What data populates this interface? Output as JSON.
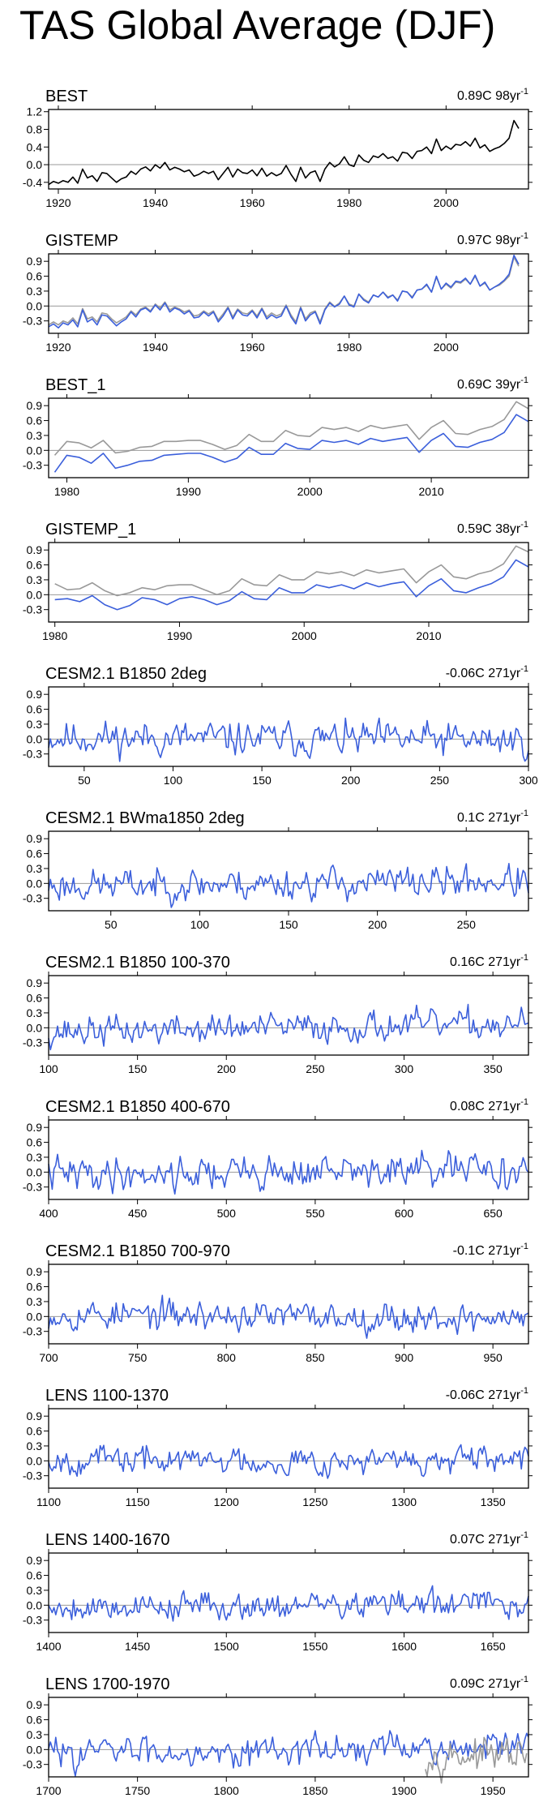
{
  "figure_title": "TAS Global Average (DJF)",
  "chart_data": [
    {
      "type": "line",
      "title": "BEST",
      "trend_label": "0.89C 98yr",
      "trend_unit_sup": "-1",
      "xlim": [
        1918,
        2017
      ],
      "ylim": [
        -0.55,
        1.25
      ],
      "x_ticks": [
        1920,
        1940,
        1960,
        1980,
        2000
      ],
      "y_ticks": [
        -0.4,
        0.0,
        0.4,
        0.8,
        1.2
      ],
      "y_tick_labels": [
        "-0.4",
        "0.0",
        "0.4",
        "0.8",
        "1.2"
      ],
      "x_start": 1918,
      "series": [
        {
          "color": "#000000",
          "values": [
            -0.45,
            -0.38,
            -0.42,
            -0.36,
            -0.4,
            -0.28,
            -0.42,
            -0.1,
            -0.3,
            -0.25,
            -0.38,
            -0.18,
            -0.2,
            -0.3,
            -0.4,
            -0.32,
            -0.28,
            -0.15,
            -0.22,
            -0.1,
            -0.05,
            -0.14,
            0.0,
            -0.08,
            0.05,
            -0.12,
            -0.06,
            -0.1,
            -0.16,
            -0.12,
            -0.26,
            -0.22,
            -0.15,
            -0.2,
            -0.15,
            -0.34,
            -0.2,
            -0.06,
            -0.28,
            -0.1,
            -0.18,
            -0.2,
            -0.12,
            -0.25,
            -0.08,
            -0.26,
            -0.18,
            -0.25,
            -0.2,
            -0.02,
            -0.22,
            -0.38,
            -0.06,
            -0.3,
            -0.18,
            -0.14,
            -0.38,
            -0.1,
            0.05,
            -0.05,
            0.02,
            0.18,
            0.0,
            -0.04,
            0.22,
            0.1,
            0.05,
            0.2,
            0.16,
            0.25,
            0.14,
            0.18,
            0.08,
            0.28,
            0.26,
            0.14,
            0.3,
            0.32,
            0.4,
            0.25,
            0.58,
            0.32,
            0.42,
            0.35,
            0.46,
            0.44,
            0.52,
            0.42,
            0.6,
            0.38,
            0.45,
            0.3,
            0.36,
            0.4,
            0.48,
            0.6,
            1.0,
            0.82
          ]
        }
      ]
    },
    {
      "type": "line",
      "title": "GISTEMP",
      "trend_label": "0.97C 98yr",
      "trend_unit_sup": "-1",
      "xlim": [
        1918,
        2017
      ],
      "ylim": [
        -0.55,
        1.05
      ],
      "x_ticks": [
        1920,
        1940,
        1960,
        1980,
        2000
      ],
      "y_ticks": [
        -0.3,
        0.0,
        0.3,
        0.6,
        0.9
      ],
      "y_tick_labels": [
        "-0.3",
        "0.0",
        "0.3",
        "0.6",
        "0.9"
      ],
      "x_start": 1918,
      "series": [
        {
          "color": "#999999",
          "values": [
            -0.38,
            -0.32,
            -0.38,
            -0.3,
            -0.34,
            -0.24,
            -0.36,
            -0.05,
            -0.26,
            -0.22,
            -0.32,
            -0.14,
            -0.16,
            -0.26,
            -0.34,
            -0.28,
            -0.22,
            -0.1,
            -0.18,
            -0.06,
            -0.02,
            -0.1,
            0.04,
            -0.04,
            0.08,
            -0.08,
            -0.02,
            -0.06,
            -0.12,
            -0.08,
            -0.2,
            -0.18,
            -0.1,
            -0.16,
            -0.1,
            -0.28,
            -0.16,
            -0.02,
            -0.22,
            -0.06,
            -0.14,
            -0.16,
            -0.08,
            -0.2,
            -0.04,
            -0.22,
            -0.14,
            -0.2,
            -0.16,
            0.02,
            -0.18,
            -0.32,
            -0.02,
            -0.26,
            -0.14,
            -0.1,
            -0.32,
            -0.06,
            0.08,
            -0.01,
            0.06,
            0.2,
            0.04,
            0.0,
            0.24,
            0.14,
            0.08,
            0.22,
            0.18,
            0.28,
            0.18,
            0.22,
            0.12,
            0.3,
            0.28,
            0.18,
            0.32,
            0.34,
            0.42,
            0.28,
            0.58,
            0.34,
            0.44,
            0.36,
            0.48,
            0.46,
            0.54,
            0.44,
            0.6,
            0.4,
            0.46,
            0.32,
            0.38,
            0.42,
            0.5,
            0.6,
            0.98,
            0.8
          ]
        },
        {
          "color": "#3b5fdb",
          "values": [
            -0.42,
            -0.36,
            -0.44,
            -0.34,
            -0.38,
            -0.28,
            -0.42,
            -0.08,
            -0.32,
            -0.26,
            -0.38,
            -0.18,
            -0.2,
            -0.3,
            -0.4,
            -0.32,
            -0.26,
            -0.12,
            -0.22,
            -0.08,
            -0.04,
            -0.12,
            0.02,
            -0.08,
            0.06,
            -0.12,
            -0.04,
            -0.08,
            -0.16,
            -0.1,
            -0.24,
            -0.22,
            -0.12,
            -0.2,
            -0.12,
            -0.32,
            -0.2,
            -0.04,
            -0.26,
            -0.08,
            -0.18,
            -0.2,
            -0.1,
            -0.24,
            -0.06,
            -0.26,
            -0.18,
            -0.24,
            -0.2,
            0.0,
            -0.22,
            -0.36,
            -0.04,
            -0.3,
            -0.18,
            -0.12,
            -0.36,
            -0.08,
            0.06,
            -0.02,
            0.04,
            0.2,
            0.02,
            -0.02,
            0.24,
            0.12,
            0.06,
            0.22,
            0.18,
            0.28,
            0.16,
            0.22,
            0.1,
            0.3,
            0.28,
            0.16,
            0.32,
            0.34,
            0.44,
            0.28,
            0.6,
            0.34,
            0.46,
            0.38,
            0.5,
            0.48,
            0.56,
            0.44,
            0.62,
            0.4,
            0.48,
            0.32,
            0.38,
            0.44,
            0.52,
            0.64,
            1.02,
            0.84
          ]
        }
      ]
    },
    {
      "type": "line",
      "title": "BEST_1",
      "trend_label": "0.69C 39yr",
      "trend_unit_sup": "-1",
      "xlim": [
        1978.5,
        2018
      ],
      "ylim": [
        -0.55,
        1.05
      ],
      "x_ticks": [
        1980,
        1990,
        2000,
        2010
      ],
      "y_ticks": [
        -0.3,
        0.0,
        0.3,
        0.6,
        0.9
      ],
      "y_tick_labels": [
        "-0.3",
        "0.0",
        "0.3",
        "0.6",
        "0.9"
      ],
      "x_start": 1979,
      "series": [
        {
          "color": "#999999",
          "values": [
            -0.1,
            0.18,
            0.15,
            0.05,
            0.2,
            -0.05,
            -0.02,
            0.06,
            0.08,
            0.18,
            0.18,
            0.2,
            0.2,
            0.12,
            0.02,
            0.1,
            0.32,
            0.18,
            0.18,
            0.4,
            0.3,
            0.28,
            0.46,
            0.42,
            0.46,
            0.38,
            0.5,
            0.44,
            0.48,
            0.52,
            0.22,
            0.46,
            0.6,
            0.34,
            0.32,
            0.42,
            0.48,
            0.62,
            0.98,
            0.84
          ]
        },
        {
          "color": "#3b5fdb",
          "values": [
            -0.44,
            -0.1,
            -0.14,
            -0.26,
            -0.06,
            -0.36,
            -0.3,
            -0.22,
            -0.2,
            -0.1,
            -0.08,
            -0.06,
            -0.06,
            -0.14,
            -0.24,
            -0.16,
            0.06,
            -0.08,
            -0.08,
            0.14,
            0.04,
            0.02,
            0.2,
            0.16,
            0.2,
            0.12,
            0.24,
            0.18,
            0.22,
            0.26,
            -0.04,
            0.2,
            0.34,
            0.08,
            0.06,
            0.16,
            0.22,
            0.36,
            0.72,
            0.58
          ]
        }
      ]
    },
    {
      "type": "line",
      "title": "GISTEMP_1",
      "trend_label": "0.59C 38yr",
      "trend_unit_sup": "-1",
      "xlim": [
        1979.5,
        2018
      ],
      "ylim": [
        -0.55,
        1.05
      ],
      "x_ticks": [
        1980,
        1990,
        2000,
        2010
      ],
      "y_ticks": [
        -0.3,
        0.0,
        0.3,
        0.6,
        0.9
      ],
      "y_tick_labels": [
        "-0.3",
        "0.0",
        "0.3",
        "0.6",
        "0.9"
      ],
      "x_start": 1980,
      "series": [
        {
          "color": "#999999",
          "values": [
            0.22,
            0.1,
            0.12,
            0.24,
            0.08,
            -0.02,
            0.04,
            0.14,
            0.1,
            0.18,
            0.2,
            0.2,
            0.1,
            0.0,
            0.08,
            0.32,
            0.2,
            0.18,
            0.4,
            0.3,
            0.3,
            0.46,
            0.42,
            0.46,
            0.38,
            0.5,
            0.44,
            0.48,
            0.52,
            0.24,
            0.46,
            0.6,
            0.36,
            0.32,
            0.42,
            0.48,
            0.62,
            0.98,
            0.86
          ]
        },
        {
          "color": "#3b5fdb",
          "values": [
            -0.1,
            -0.08,
            -0.14,
            -0.02,
            -0.2,
            -0.3,
            -0.22,
            -0.06,
            -0.1,
            -0.2,
            -0.08,
            -0.04,
            -0.1,
            -0.2,
            -0.12,
            0.06,
            -0.08,
            -0.1,
            0.14,
            0.04,
            0.04,
            0.2,
            0.14,
            0.2,
            0.12,
            0.24,
            0.16,
            0.22,
            0.26,
            -0.04,
            0.18,
            0.32,
            0.08,
            0.04,
            0.14,
            0.22,
            0.36,
            0.7,
            0.56
          ]
        }
      ]
    },
    {
      "type": "line",
      "title": "CESM2.1 B1850 2deg",
      "trend_label": "-0.06C 271yr",
      "trend_unit_sup": "-1",
      "xlim": [
        30,
        300
      ],
      "ylim": [
        -0.55,
        1.05
      ],
      "x_ticks": [
        50,
        100,
        150,
        200,
        250,
        300
      ],
      "y_ticks": [
        -0.3,
        0.0,
        0.3,
        0.6,
        0.9
      ],
      "y_tick_labels": [
        "-0.3",
        "0.0",
        "0.3",
        "0.6",
        "0.9"
      ],
      "x_start": 30,
      "series": [
        {
          "color": "#3b5fdb",
          "noise": {
            "seed": 11,
            "amp": 0.16,
            "trend": -0.06,
            "n": 271
          }
        }
      ]
    },
    {
      "type": "line",
      "title": "CESM2.1 BWma1850 2deg",
      "trend_label": "0.1C 271yr",
      "trend_unit_sup": "-1",
      "xlim": [
        15,
        285
      ],
      "ylim": [
        -0.55,
        1.05
      ],
      "x_ticks": [
        50,
        100,
        150,
        200,
        250
      ],
      "y_ticks": [
        -0.3,
        0.0,
        0.3,
        0.6,
        0.9
      ],
      "y_tick_labels": [
        "-0.3",
        "0.0",
        "0.3",
        "0.6",
        "0.9"
      ],
      "x_start": 15,
      "series": [
        {
          "color": "#3b5fdb",
          "noise": {
            "seed": 23,
            "amp": 0.15,
            "trend": 0.1,
            "n": 271
          }
        }
      ]
    },
    {
      "type": "line",
      "title": "CESM2.1 B1850 100-370",
      "trend_label": "0.16C 271yr",
      "trend_unit_sup": "-1",
      "xlim": [
        100,
        370
      ],
      "ylim": [
        -0.55,
        1.05
      ],
      "x_ticks": [
        100,
        150,
        200,
        250,
        300,
        350
      ],
      "y_ticks": [
        -0.3,
        0.0,
        0.3,
        0.6,
        0.9
      ],
      "y_tick_labels": [
        "-0.3",
        "0.0",
        "0.3",
        "0.6",
        "0.9"
      ],
      "x_start": 100,
      "series": [
        {
          "color": "#3b5fdb",
          "noise": {
            "seed": 37,
            "amp": 0.14,
            "trend": 0.16,
            "n": 271
          }
        }
      ]
    },
    {
      "type": "line",
      "title": "CESM2.1 B1850 400-670",
      "trend_label": "0.08C 271yr",
      "trend_unit_sup": "-1",
      "xlim": [
        400,
        670
      ],
      "ylim": [
        -0.55,
        1.05
      ],
      "x_ticks": [
        400,
        450,
        500,
        550,
        600,
        650
      ],
      "y_ticks": [
        -0.3,
        0.0,
        0.3,
        0.6,
        0.9
      ],
      "y_tick_labels": [
        "-0.3",
        "0.0",
        "0.3",
        "0.6",
        "0.9"
      ],
      "x_start": 400,
      "series": [
        {
          "color": "#3b5fdb",
          "noise": {
            "seed": 41,
            "amp": 0.16,
            "trend": 0.08,
            "n": 271
          }
        }
      ]
    },
    {
      "type": "line",
      "title": "CESM2.1 B1850 700-970",
      "trend_label": "-0.1C 271yr",
      "trend_unit_sup": "-1",
      "xlim": [
        700,
        970
      ],
      "ylim": [
        -0.55,
        1.05
      ],
      "x_ticks": [
        700,
        750,
        800,
        850,
        900,
        950
      ],
      "y_ticks": [
        -0.3,
        0.0,
        0.3,
        0.6,
        0.9
      ],
      "y_tick_labels": [
        "-0.3",
        "0.0",
        "0.3",
        "0.6",
        "0.9"
      ],
      "x_start": 700,
      "series": [
        {
          "color": "#3b5fdb",
          "noise": {
            "seed": 53,
            "amp": 0.14,
            "trend": -0.1,
            "n": 271
          }
        }
      ]
    },
    {
      "type": "line",
      "title": "LENS 1100-1370",
      "trend_label": "-0.06C 271yr",
      "trend_unit_sup": "-1",
      "xlim": [
        1100,
        1370
      ],
      "ylim": [
        -0.55,
        1.05
      ],
      "x_ticks": [
        1100,
        1150,
        1200,
        1250,
        1300,
        1350
      ],
      "y_ticks": [
        -0.3,
        0.0,
        0.3,
        0.6,
        0.9
      ],
      "y_tick_labels": [
        "-0.3",
        "0.0",
        "0.3",
        "0.6",
        "0.9"
      ],
      "x_start": 1100,
      "series": [
        {
          "color": "#3b5fdb",
          "noise": {
            "seed": 67,
            "amp": 0.13,
            "trend": -0.06,
            "n": 271
          }
        }
      ]
    },
    {
      "type": "line",
      "title": "LENS 1400-1670",
      "trend_label": "0.07C 271yr",
      "trend_unit_sup": "-1",
      "xlim": [
        1400,
        1670
      ],
      "ylim": [
        -0.55,
        1.05
      ],
      "x_ticks": [
        1400,
        1450,
        1500,
        1550,
        1600,
        1650
      ],
      "y_ticks": [
        -0.3,
        0.0,
        0.3,
        0.6,
        0.9
      ],
      "y_tick_labels": [
        "-0.3",
        "0.0",
        "0.3",
        "0.6",
        "0.9"
      ],
      "x_start": 1400,
      "series": [
        {
          "color": "#3b5fdb",
          "noise": {
            "seed": 79,
            "amp": 0.13,
            "trend": 0.07,
            "n": 271
          }
        }
      ]
    },
    {
      "type": "line",
      "title": "LENS 1700-1970",
      "trend_label": "0.09C 271yr",
      "trend_unit_sup": "-1",
      "xlim": [
        1700,
        1970
      ],
      "ylim": [
        -0.55,
        1.05
      ],
      "x_ticks": [
        1700,
        1750,
        1800,
        1850,
        1900,
        1950
      ],
      "y_ticks": [
        -0.3,
        0.0,
        0.3,
        0.6,
        0.9
      ],
      "y_tick_labels": [
        "-0.3",
        "0.0",
        "0.3",
        "0.6",
        "0.9"
      ],
      "x_start": 1700,
      "series": [
        {
          "color": "#3b5fdb",
          "noise": {
            "seed": 83,
            "amp": 0.14,
            "trend": 0.09,
            "n": 271
          }
        },
        {
          "color": "#999999",
          "noise": {
            "seed": 97,
            "amp": 0.15,
            "trend": 0.0,
            "n": 58
          },
          "x_offset": 212,
          "shift": -0.12
        }
      ]
    }
  ]
}
